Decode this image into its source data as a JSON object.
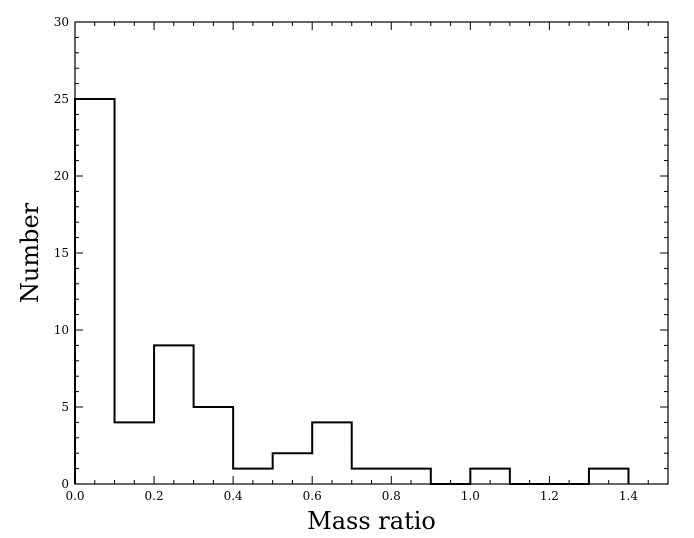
{
  "chart_data": {
    "type": "bar",
    "style": "step-histogram",
    "xlabel": "Mass ratio",
    "ylabel": "Number",
    "xlim": [
      0.0,
      1.5
    ],
    "ylim": [
      0,
      30
    ],
    "bin_width": 0.1,
    "bins": [
      {
        "start": 0.0,
        "end": 0.1,
        "count": 25
      },
      {
        "start": 0.1,
        "end": 0.2,
        "count": 4
      },
      {
        "start": 0.2,
        "end": 0.3,
        "count": 9
      },
      {
        "start": 0.3,
        "end": 0.4,
        "count": 5
      },
      {
        "start": 0.4,
        "end": 0.5,
        "count": 1
      },
      {
        "start": 0.5,
        "end": 0.6,
        "count": 2
      },
      {
        "start": 0.6,
        "end": 0.7,
        "count": 4
      },
      {
        "start": 0.7,
        "end": 0.8,
        "count": 1
      },
      {
        "start": 0.8,
        "end": 0.9,
        "count": 1
      },
      {
        "start": 0.9,
        "end": 1.0,
        "count": 0
      },
      {
        "start": 1.0,
        "end": 1.1,
        "count": 1
      },
      {
        "start": 1.1,
        "end": 1.2,
        "count": 0
      },
      {
        "start": 1.2,
        "end": 1.3,
        "count": 0
      },
      {
        "start": 1.3,
        "end": 1.4,
        "count": 1
      }
    ],
    "x_ticks": [
      "0.0",
      "0.2",
      "0.4",
      "0.6",
      "0.8",
      "1.0",
      "1.2",
      "1.4"
    ],
    "y_ticks": [
      "0",
      "5",
      "10",
      "15",
      "20",
      "25",
      "30"
    ],
    "x_minor_step": 0.05,
    "y_minor_step": 1,
    "grid": false,
    "line_color": "#000000"
  }
}
